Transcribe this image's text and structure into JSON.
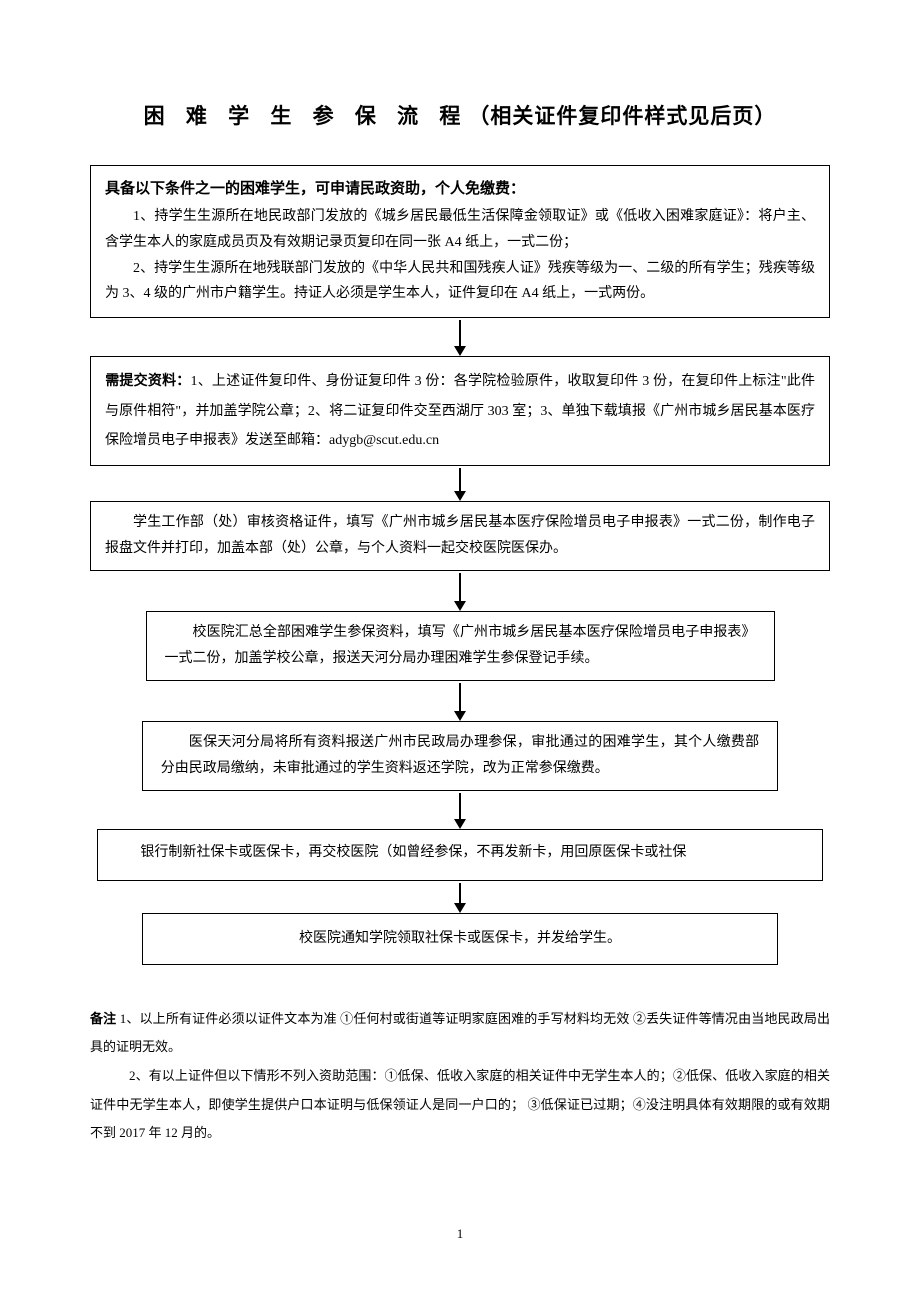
{
  "title": {
    "spaced": "困 难 学 生 参 保 流 程",
    "rest": "（相关证件复印件样式见后页）"
  },
  "box1": {
    "heading": "具备以下条件之一的困难学生，可申请民政资助，个人免缴费：",
    "line1": "1、持学生生源所在地民政部门发放的《城乡居民最低生活保障金领取证》或《低收入困难家庭证》：将户主、含学生本人的家庭成员页及有效期记录页复印在同一张 A4 纸上，一式二份；",
    "line2": "2、持学生生源所在地残联部门发放的《中华人民共和国残疾人证》残疾等级为一、二级的所有学生；残疾等级为 3、4 级的广州市户籍学生。持证人必须是学生本人，证件复印在 A4 纸上，一式两份。"
  },
  "box2": {
    "label": "需提交资料：",
    "text": "1、上述证件复印件、身份证复印件 3 份：各学院检验原件，收取复印件 3 份，在复印件上标注\"此件与原件相符\"，并加盖学院公章；2、将二证复印件交至西湖厅 303 室；3、单独下载填报《广州市城乡居民基本医疗保险增员电子申报表》发送至邮箱：adygb@scut.edu.cn"
  },
  "box3": {
    "text": "学生工作部（处）审核资格证件，填写《广州市城乡居民基本医疗保险增员电子申报表》一式二份，制作电子报盘文件并打印，加盖本部（处）公章，与个人资料一起交校医院医保办。"
  },
  "box4": {
    "text": "校医院汇总全部困难学生参保资料，填写《广州市城乡居民基本医疗保险增员电子申报表》一式二份，加盖学校公章，报送天河分局办理困难学生参保登记手续。"
  },
  "box5": {
    "text": "医保天河分局将所有资料报送广州市民政局办理参保，审批通过的困难学生，其个人缴费部分由民政局缴纳，未审批通过的学生资料返还学院，改为正常参保缴费。"
  },
  "box6": {
    "text": "银行制新社保卡或医保卡，再交校医院（如曾经参保，不再发新卡，用回原医保卡或社保"
  },
  "box7": {
    "text": "校医院通知学院领取社保卡或医保卡，并发给学生。"
  },
  "notes": {
    "label": "备注",
    "line1": " 1、以上所有证件必须以证件文本为准 ①任何村或街道等证明家庭困难的手写材料均无效 ②丢失证件等情况由当地民政局出具的证明无效。",
    "line2": "2、有以上证件但以下情形不列入资助范围：①低保、低收入家庭的相关证件中无学生本人的；②低保、低收入家庭的相关证件中无学生本人，即使学生提供户口本证明与低保领证人是同一户口的； ③低保证已过期；④没注明具体有效期限的或有效期不到 2017 年 12 月的。"
  },
  "pageNumber": "1",
  "styling": {
    "background_color": "#ffffff",
    "text_color": "#000000",
    "border_color": "#000000",
    "title_fontsize": 21,
    "body_fontsize": 14,
    "notes_fontsize": 13,
    "font_family": "SimSun"
  }
}
